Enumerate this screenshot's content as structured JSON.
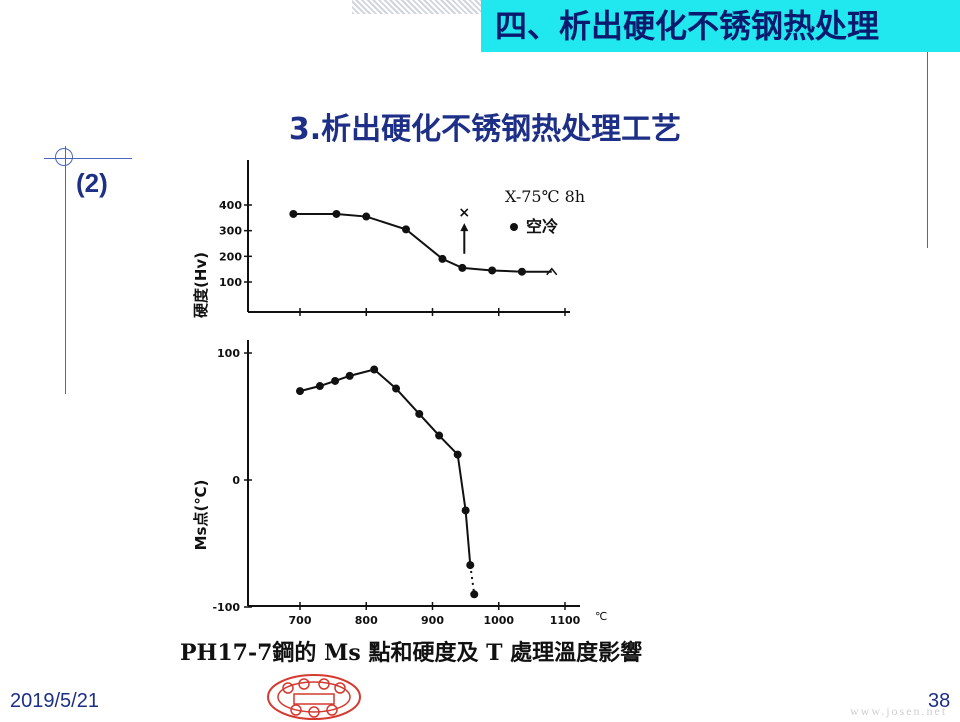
{
  "header": {
    "section_title": "四、析出硬化不锈钢热处理"
  },
  "slide": {
    "subtitle": "3.析出硬化不锈钢热处理工艺",
    "item_marker": "(2)",
    "date": "2019/5/21",
    "page_number": "38",
    "watermark": "www.josen.net"
  },
  "chart_data": [
    {
      "type": "line",
      "ylabel": "硬度(Hv)",
      "yticks": [
        100,
        200,
        300,
        400
      ],
      "xticks": [
        700,
        800,
        900,
        1000,
        1100
      ],
      "xunit": "℃",
      "legend": [
        {
          "marker": "x",
          "label": "X-75℃ 8h"
        },
        {
          "marker": "dot",
          "label": "空冷"
        }
      ],
      "series": [
        {
          "marker": "dot",
          "x": [
            690,
            755,
            800,
            860,
            915,
            945,
            990,
            1035,
            1080
          ],
          "y": [
            365,
            365,
            355,
            305,
            190,
            155,
            145,
            140,
            140
          ]
        }
      ],
      "annotation": {
        "marker": "x",
        "x": 948,
        "y_from": 210,
        "y_to": 345
      }
    },
    {
      "type": "line",
      "ylabel": "Ms点(℃)",
      "yticks": [
        -100,
        0,
        100
      ],
      "xticks": [
        700,
        800,
        900,
        1000,
        1100
      ],
      "xunit": "℃",
      "caption": "PH17-7鋼的 Ms 點和硬度及 T 處理溫度影響",
      "series": [
        {
          "marker": "dot",
          "x": [
            700,
            730,
            753,
            775,
            812,
            845,
            880,
            910,
            938,
            950,
            957,
            963
          ],
          "y": [
            70,
            74,
            78,
            82,
            87,
            72,
            52,
            35,
            20,
            -24,
            -67,
            -90
          ]
        }
      ]
    }
  ]
}
